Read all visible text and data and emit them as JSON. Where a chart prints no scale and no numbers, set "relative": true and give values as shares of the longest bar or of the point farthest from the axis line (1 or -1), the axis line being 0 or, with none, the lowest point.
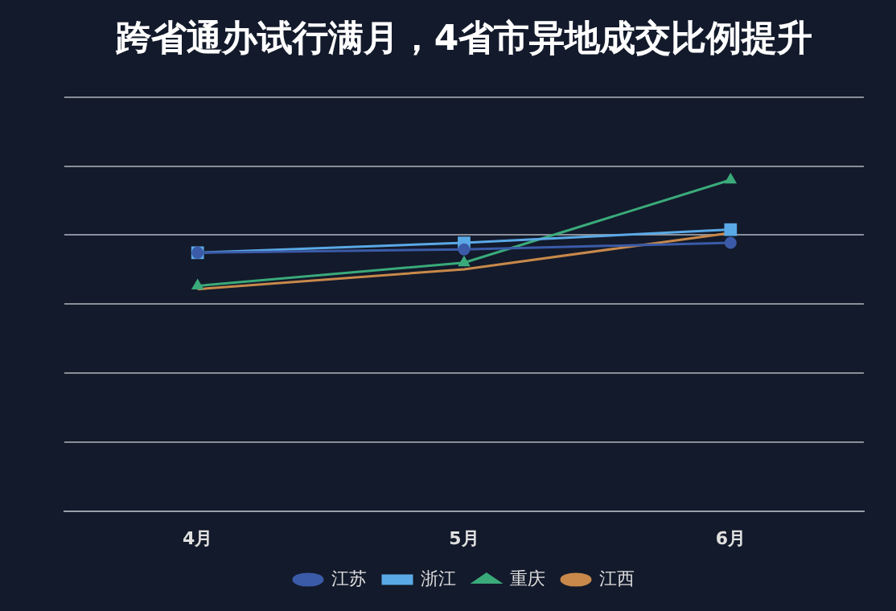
{
  "chart_data": {
    "type": "line",
    "title": "跨省通办试行满月，4省市异地成交比例提升",
    "categories": [
      "4月",
      "5月",
      "6月"
    ],
    "relative": true,
    "grid": "y",
    "legend": "bottom",
    "series": [
      {
        "name": "江苏",
        "color": "#3b5ba8",
        "marker": "circle",
        "values": [
          0.78,
          0.79,
          0.81
        ]
      },
      {
        "name": "浙江",
        "color": "#5aa9e6",
        "marker": "square",
        "values": [
          0.78,
          0.81,
          0.85
        ]
      },
      {
        "name": "重庆",
        "color": "#3aaa7a",
        "marker": "triangle",
        "values": [
          0.68,
          0.75,
          1
        ]
      },
      {
        "name": "江西",
        "color": "#c8894a",
        "marker": "none",
        "values": [
          0.67,
          0.73,
          0.84
        ]
      }
    ]
  }
}
